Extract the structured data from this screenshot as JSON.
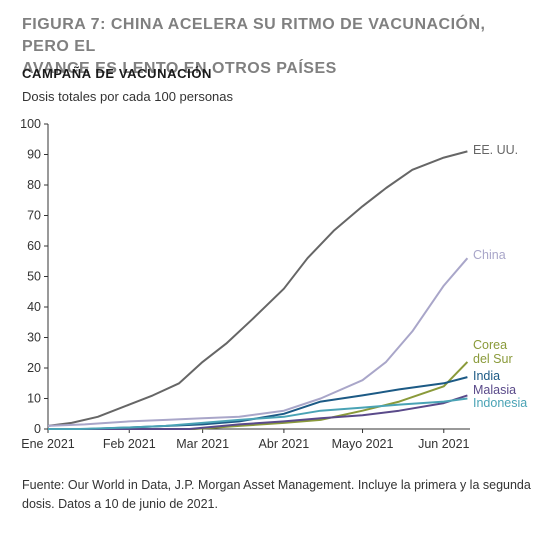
{
  "header": {
    "title_line1": "FIGURA 7: CHINA ACELERA SU RITMO DE VACUNACIÓN, PERO EL",
    "title_line2": "AVANCE ES LENTO EN OTROS PAÍSES",
    "subtitle": "CAMPAÑA DE VACUNACIÓN",
    "unit": "Dosis totales por cada 100 personas"
  },
  "footer": {
    "source": "Fuente: Our World in Data, J.P. Morgan Asset Management. Incluye la primera y la segunda dosis. Datos a 10 de junio de 2021."
  },
  "chart_data": {
    "type": "line",
    "title": "FIGURA 7: CHINA ACELERA SU RITMO DE VACUNACIÓN, PERO EL AVANCE ES LENTO EN OTROS PAÍSES",
    "subtitle": "CAMPAÑA DE VACUNACIÓN",
    "ylabel": "Dosis totales por cada 100 personas",
    "xlabel": "",
    "ylim": [
      0,
      100
    ],
    "yticks": [
      0,
      10,
      20,
      30,
      40,
      50,
      60,
      70,
      80,
      90,
      100
    ],
    "xlim": [
      "2021-01-01",
      "2021-06-11"
    ],
    "xticks": [
      {
        "date": "2021-01-01",
        "label": "Ene 2021"
      },
      {
        "date": "2021-02-01",
        "label": "Feb 2021"
      },
      {
        "date": "2021-03-01",
        "label": "Mar 2021"
      },
      {
        "date": "2021-04-01",
        "label": "Abr 2021"
      },
      {
        "date": "2021-05-01",
        "label": "Mayo 2021"
      },
      {
        "date": "2021-06-01",
        "label": "Jun 2021"
      }
    ],
    "grid": false,
    "legend": "end-of-line labels",
    "series": [
      {
        "name": "EE. UU.",
        "label_lines": [
          "EE. UU."
        ],
        "color": "#666666",
        "points": [
          [
            "2021-01-01",
            1
          ],
          [
            "2021-01-10",
            2
          ],
          [
            "2021-01-20",
            4
          ],
          [
            "2021-02-01",
            8
          ],
          [
            "2021-02-10",
            11
          ],
          [
            "2021-02-20",
            15
          ],
          [
            "2021-03-01",
            22
          ],
          [
            "2021-03-10",
            28
          ],
          [
            "2021-03-20",
            36
          ],
          [
            "2021-04-01",
            46
          ],
          [
            "2021-04-10",
            56
          ],
          [
            "2021-04-20",
            65
          ],
          [
            "2021-05-01",
            73
          ],
          [
            "2021-05-10",
            79
          ],
          [
            "2021-05-20",
            85
          ],
          [
            "2021-06-01",
            89
          ],
          [
            "2021-06-10",
            91
          ]
        ]
      },
      {
        "name": "China",
        "label_lines": [
          "China"
        ],
        "color": "#a9a6c9",
        "points": [
          [
            "2021-01-01",
            1
          ],
          [
            "2021-01-15",
            1.5
          ],
          [
            "2021-02-01",
            2.5
          ],
          [
            "2021-02-15",
            3
          ],
          [
            "2021-03-01",
            3.5
          ],
          [
            "2021-03-15",
            4
          ],
          [
            "2021-04-01",
            6
          ],
          [
            "2021-04-15",
            10
          ],
          [
            "2021-05-01",
            16
          ],
          [
            "2021-05-10",
            22
          ],
          [
            "2021-05-20",
            32
          ],
          [
            "2021-06-01",
            47
          ],
          [
            "2021-06-10",
            56
          ]
        ]
      },
      {
        "name": "Corea del Sur",
        "label_lines": [
          "Corea",
          "del Sur"
        ],
        "color": "#8a9a3a",
        "points": [
          [
            "2021-01-01",
            0
          ],
          [
            "2021-02-26",
            0
          ],
          [
            "2021-03-15",
            1
          ],
          [
            "2021-04-01",
            2
          ],
          [
            "2021-04-15",
            3
          ],
          [
            "2021-05-01",
            6
          ],
          [
            "2021-05-15",
            9
          ],
          [
            "2021-06-01",
            14
          ],
          [
            "2021-06-10",
            22
          ]
        ]
      },
      {
        "name": "India",
        "label_lines": [
          "India"
        ],
        "color": "#1c5a85",
        "points": [
          [
            "2021-01-01",
            0
          ],
          [
            "2021-01-16",
            0
          ],
          [
            "2021-02-01",
            0.5
          ],
          [
            "2021-03-01",
            1.5
          ],
          [
            "2021-03-15",
            2.5
          ],
          [
            "2021-04-01",
            5
          ],
          [
            "2021-04-15",
            9
          ],
          [
            "2021-05-01",
            11
          ],
          [
            "2021-05-15",
            13
          ],
          [
            "2021-06-01",
            15
          ],
          [
            "2021-06-10",
            17
          ]
        ]
      },
      {
        "name": "Malasia",
        "label_lines": [
          "Malasia"
        ],
        "color": "#5a4a8a",
        "points": [
          [
            "2021-01-01",
            0
          ],
          [
            "2021-02-24",
            0
          ],
          [
            "2021-03-15",
            1.5
          ],
          [
            "2021-04-01",
            2.5
          ],
          [
            "2021-04-15",
            3.5
          ],
          [
            "2021-05-01",
            4.5
          ],
          [
            "2021-05-15",
            6
          ],
          [
            "2021-06-01",
            8.5
          ],
          [
            "2021-06-10",
            11
          ]
        ]
      },
      {
        "name": "Indonesia",
        "label_lines": [
          "Indonesia"
        ],
        "color": "#4aa3b5",
        "points": [
          [
            "2021-01-01",
            0
          ],
          [
            "2021-01-13",
            0
          ],
          [
            "2021-02-01",
            0.5
          ],
          [
            "2021-02-15",
            1
          ],
          [
            "2021-03-01",
            2
          ],
          [
            "2021-03-15",
            3
          ],
          [
            "2021-04-01",
            4
          ],
          [
            "2021-04-15",
            6
          ],
          [
            "2021-05-01",
            7
          ],
          [
            "2021-05-15",
            8
          ],
          [
            "2021-06-01",
            9
          ],
          [
            "2021-06-10",
            10
          ]
        ]
      }
    ]
  }
}
